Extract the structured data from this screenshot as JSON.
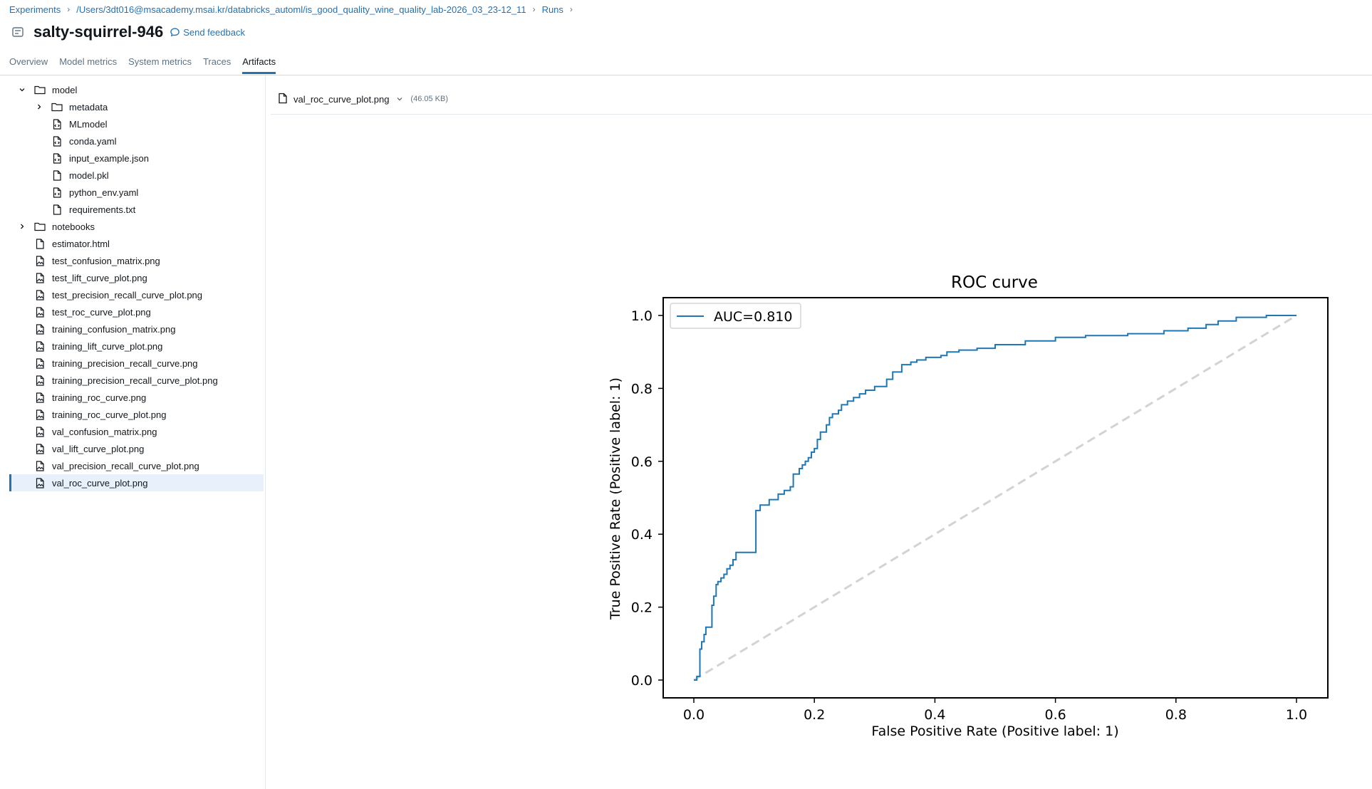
{
  "breadcrumb": {
    "experiments": "Experiments",
    "path": "/Users/3dt016@msacademy.msai.kr/databricks_automl/is_good_quality_wine_quality_lab-2026_03_23-12_11",
    "runs": "Runs",
    "separator": "›"
  },
  "header": {
    "title": "salty-squirrel-946",
    "feedback": "Send feedback"
  },
  "tabs": [
    {
      "label": "Overview"
    },
    {
      "label": "Model metrics"
    },
    {
      "label": "System metrics"
    },
    {
      "label": "Traces"
    },
    {
      "label": "Artifacts",
      "active": true
    }
  ],
  "tree": [
    {
      "label": "model",
      "kind": "folder",
      "expanded": true,
      "depth": 0
    },
    {
      "label": "metadata",
      "kind": "folder",
      "expanded": false,
      "depth": 1
    },
    {
      "label": "MLmodel",
      "kind": "code-file",
      "depth": 1
    },
    {
      "label": "conda.yaml",
      "kind": "code-file",
      "depth": 1
    },
    {
      "label": "input_example.json",
      "kind": "code-file",
      "depth": 1
    },
    {
      "label": "model.pkl",
      "kind": "file",
      "depth": 1
    },
    {
      "label": "python_env.yaml",
      "kind": "code-file",
      "depth": 1
    },
    {
      "label": "requirements.txt",
      "kind": "file",
      "depth": 1
    },
    {
      "label": "notebooks",
      "kind": "folder",
      "expanded": false,
      "depth": 0
    },
    {
      "label": "estimator.html",
      "kind": "file",
      "depth": 0
    },
    {
      "label": "test_confusion_matrix.png",
      "kind": "image-file",
      "depth": 0
    },
    {
      "label": "test_lift_curve_plot.png",
      "kind": "image-file",
      "depth": 0
    },
    {
      "label": "test_precision_recall_curve_plot.png",
      "kind": "image-file",
      "depth": 0
    },
    {
      "label": "test_roc_curve_plot.png",
      "kind": "image-file",
      "depth": 0
    },
    {
      "label": "training_confusion_matrix.png",
      "kind": "image-file",
      "depth": 0
    },
    {
      "label": "training_lift_curve_plot.png",
      "kind": "image-file",
      "depth": 0
    },
    {
      "label": "training_precision_recall_curve.png",
      "kind": "image-file",
      "depth": 0
    },
    {
      "label": "training_precision_recall_curve_plot.png",
      "kind": "image-file",
      "depth": 0
    },
    {
      "label": "training_roc_curve.png",
      "kind": "image-file",
      "depth": 0
    },
    {
      "label": "training_roc_curve_plot.png",
      "kind": "image-file",
      "depth": 0
    },
    {
      "label": "val_confusion_matrix.png",
      "kind": "image-file",
      "depth": 0
    },
    {
      "label": "val_lift_curve_plot.png",
      "kind": "image-file",
      "depth": 0
    },
    {
      "label": "val_precision_recall_curve_plot.png",
      "kind": "image-file",
      "depth": 0
    },
    {
      "label": "val_roc_curve_plot.png",
      "kind": "image-file",
      "depth": 0,
      "selected": true
    }
  ],
  "viewer": {
    "filename": "val_roc_curve_plot.png",
    "size": "(46.05 KB)"
  },
  "colors": {
    "link": "#2272b4",
    "curve": "#1f77b4",
    "diagonal": "#d3d3d3",
    "selected_bg": "#e8f1fb"
  },
  "chart_data": {
    "type": "line",
    "title": "ROC curve",
    "xlabel": "False Positive Rate (Positive label: 1)",
    "ylabel": "True Positive Rate (Positive label: 1)",
    "xlim": [
      0,
      1
    ],
    "ylim": [
      0,
      1
    ],
    "xticks": [
      "0.0",
      "0.2",
      "0.4",
      "0.6",
      "0.8",
      "1.0"
    ],
    "yticks": [
      "0.0",
      "0.2",
      "0.4",
      "0.6",
      "0.8",
      "1.0"
    ],
    "legend_placement": "top-left",
    "grid": false,
    "series": [
      {
        "name": "AUC=0.810",
        "x": [
          0.0,
          0.005,
          0.005,
          0.01,
          0.01,
          0.013,
          0.013,
          0.017,
          0.017,
          0.02,
          0.02,
          0.03,
          0.03,
          0.033,
          0.033,
          0.037,
          0.037,
          0.04,
          0.04,
          0.045,
          0.045,
          0.05,
          0.05,
          0.055,
          0.055,
          0.06,
          0.06,
          0.065,
          0.065,
          0.07,
          0.07,
          0.075,
          0.075,
          0.103,
          0.103,
          0.11,
          0.11,
          0.125,
          0.125,
          0.14,
          0.14,
          0.15,
          0.15,
          0.16,
          0.16,
          0.165,
          0.165,
          0.175,
          0.175,
          0.18,
          0.18,
          0.185,
          0.185,
          0.19,
          0.19,
          0.195,
          0.195,
          0.2,
          0.2,
          0.205,
          0.205,
          0.21,
          0.21,
          0.22,
          0.22,
          0.225,
          0.225,
          0.23,
          0.23,
          0.24,
          0.24,
          0.245,
          0.245,
          0.255,
          0.255,
          0.265,
          0.265,
          0.275,
          0.275,
          0.285,
          0.285,
          0.3,
          0.3,
          0.32,
          0.32,
          0.33,
          0.33,
          0.345,
          0.345,
          0.36,
          0.36,
          0.37,
          0.37,
          0.385,
          0.385,
          0.41,
          0.41,
          0.42,
          0.42,
          0.44,
          0.44,
          0.47,
          0.47,
          0.5,
          0.5,
          0.55,
          0.55,
          0.6,
          0.6,
          0.65,
          0.65,
          0.72,
          0.72,
          0.78,
          0.78,
          0.82,
          0.82,
          0.85,
          0.85,
          0.87,
          0.87,
          0.9,
          0.9,
          0.95,
          0.95,
          1.0
        ],
        "y": [
          0.0,
          0.0,
          0.01,
          0.01,
          0.085,
          0.085,
          0.105,
          0.105,
          0.125,
          0.125,
          0.145,
          0.145,
          0.205,
          0.205,
          0.23,
          0.23,
          0.262,
          0.262,
          0.27,
          0.27,
          0.28,
          0.28,
          0.29,
          0.29,
          0.305,
          0.305,
          0.315,
          0.315,
          0.33,
          0.33,
          0.35,
          0.35,
          0.35,
          0.35,
          0.465,
          0.465,
          0.48,
          0.48,
          0.495,
          0.495,
          0.51,
          0.51,
          0.52,
          0.52,
          0.53,
          0.53,
          0.565,
          0.565,
          0.58,
          0.58,
          0.59,
          0.59,
          0.6,
          0.6,
          0.61,
          0.61,
          0.625,
          0.625,
          0.635,
          0.635,
          0.66,
          0.66,
          0.68,
          0.68,
          0.7,
          0.7,
          0.72,
          0.72,
          0.73,
          0.73,
          0.74,
          0.74,
          0.755,
          0.755,
          0.765,
          0.765,
          0.775,
          0.775,
          0.785,
          0.785,
          0.795,
          0.795,
          0.805,
          0.805,
          0.825,
          0.825,
          0.845,
          0.845,
          0.865,
          0.865,
          0.872,
          0.872,
          0.878,
          0.878,
          0.885,
          0.885,
          0.89,
          0.89,
          0.9,
          0.9,
          0.905,
          0.905,
          0.91,
          0.91,
          0.92,
          0.92,
          0.93,
          0.93,
          0.94,
          0.94,
          0.945,
          0.945,
          0.95,
          0.95,
          0.958,
          0.958,
          0.965,
          0.965,
          0.975,
          0.975,
          0.985,
          0.985,
          0.995,
          0.995,
          1.0,
          1.0
        ]
      },
      {
        "x": [
          0,
          1
        ],
        "y": [
          0,
          1
        ],
        "style": "dashed"
      }
    ]
  }
}
